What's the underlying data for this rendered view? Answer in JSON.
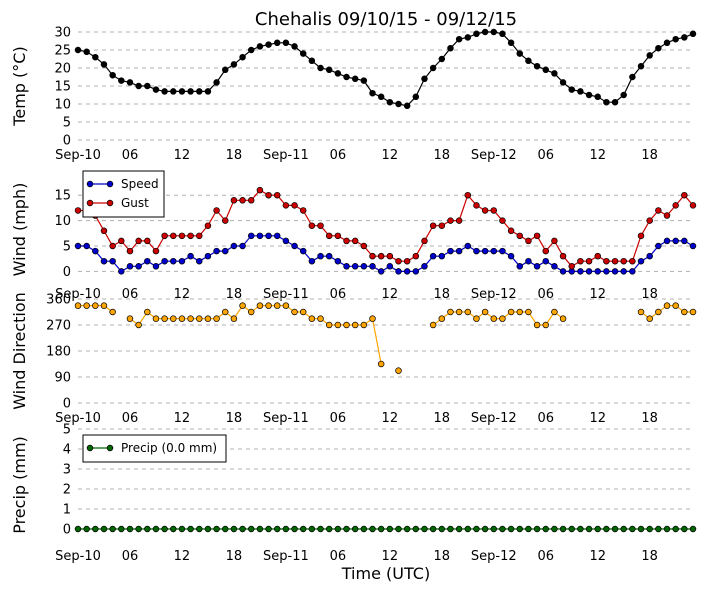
{
  "chart_data": [
    {
      "type": "line",
      "title": "Chehalis 09/10/15 - 09/12/15",
      "ylabel": "Temp (°C)",
      "ylim": [
        0,
        30
      ],
      "yticks": [
        0,
        5,
        10,
        15,
        20,
        25,
        30
      ],
      "x_tick_labels": [
        "Sep-10",
        "06",
        "12",
        "18",
        "Sep-11",
        "06",
        "12",
        "18",
        "Sep-12",
        "06",
        "12",
        "18"
      ],
      "grid": true,
      "colors": {
        "marker": "#000000",
        "line": "#000000"
      },
      "series": [
        {
          "values": [
            25,
            24.5,
            23,
            21,
            18,
            16.5,
            16,
            15,
            15,
            14,
            13.5,
            13.5,
            13.5,
            13.5,
            13.5,
            13.5,
            16,
            19.5,
            21,
            23,
            25,
            26,
            26.5,
            27,
            27,
            26,
            24,
            22,
            20,
            19.5,
            18.5,
            17.5,
            17,
            16.5,
            13,
            12,
            10.5,
            10,
            9.5,
            12,
            17,
            20,
            22.5,
            25.5,
            28,
            28.5,
            29.5,
            30,
            30,
            29.5,
            27,
            24,
            22,
            20.5,
            19.5,
            18.5,
            16,
            14,
            13.5,
            12.5,
            12,
            10.5,
            10.5,
            12.5,
            17.5,
            20.5,
            23.5,
            25.5,
            27,
            28,
            28.5,
            29.5
          ]
        }
      ]
    },
    {
      "type": "line",
      "ylabel": "Wind (mph)",
      "ylim": [
        -1.5,
        18
      ],
      "yticks": [
        0,
        5,
        10,
        15
      ],
      "x_tick_labels": [
        "Sep-10",
        "06",
        "12",
        "18",
        "Sep-11",
        "06",
        "12",
        "18",
        "Sep-12",
        "06",
        "12",
        "18"
      ],
      "grid": true,
      "legend": "top-left",
      "colors": {
        "speed": "#0000cc",
        "gust": "#cc0000"
      },
      "series": [
        {
          "name": "Speed",
          "values": [
            5,
            5,
            4,
            2,
            2,
            0,
            1,
            1,
            2,
            1,
            2,
            2,
            2,
            3,
            2,
            3,
            4,
            4,
            5,
            5,
            7,
            7,
            7,
            7,
            6,
            5,
            4,
            2,
            3,
            3,
            2,
            1,
            1,
            1,
            1,
            0,
            1,
            0,
            0,
            0,
            1,
            3,
            3,
            4,
            4,
            5,
            4,
            4,
            4,
            4,
            3,
            1,
            2,
            1,
            2,
            1,
            0,
            0,
            0,
            0,
            0,
            0,
            0,
            0,
            0,
            2,
            3,
            5,
            6,
            6,
            6,
            5
          ]
        },
        {
          "name": "Gust",
          "values": [
            12,
            12,
            11,
            8,
            5,
            6,
            4,
            6,
            6,
            4,
            7,
            7,
            7,
            7,
            7,
            9,
            12,
            10,
            14,
            14,
            14,
            16,
            15,
            15,
            13,
            13,
            12,
            9,
            9,
            7,
            7,
            6,
            6,
            5,
            3,
            3,
            3,
            2,
            2,
            3,
            6,
            9,
            9,
            10,
            10,
            15,
            13,
            12,
            12,
            10,
            8,
            7,
            6,
            7,
            4,
            6,
            3,
            1,
            2,
            2,
            3,
            2,
            2,
            2,
            2,
            7,
            10,
            12,
            11,
            13,
            15,
            13
          ]
        }
      ]
    },
    {
      "type": "line",
      "ylabel": "Wind Direction",
      "ylim": [
        0,
        360
      ],
      "yticks": [
        0,
        90,
        180,
        270,
        360
      ],
      "x_tick_labels": [
        "Sep-10",
        "06",
        "12",
        "18",
        "Sep-11",
        "06",
        "12",
        "18",
        "Sep-12",
        "06",
        "12",
        "18"
      ],
      "grid": true,
      "colors": {
        "marker": "#ffa500",
        "line": "#ffa500"
      },
      "series": [
        {
          "values": [
            337,
            337,
            337,
            337,
            315,
            null,
            292,
            270,
            315,
            292,
            292,
            292,
            292,
            292,
            292,
            292,
            292,
            315,
            292,
            337,
            315,
            337,
            337,
            337,
            337,
            315,
            315,
            292,
            292,
            270,
            270,
            270,
            270,
            270,
            292,
            135,
            null,
            112,
            null,
            null,
            null,
            270,
            292,
            315,
            315,
            315,
            292,
            315,
            292,
            292,
            315,
            315,
            315,
            270,
            270,
            315,
            292,
            null,
            null,
            null,
            null,
            null,
            null,
            null,
            null,
            315,
            292,
            315,
            337,
            337,
            315,
            315
          ]
        }
      ]
    },
    {
      "type": "line",
      "ylabel": "Precip (mm)",
      "xlabel": "Time (UTC)",
      "ylim": [
        -0.6,
        5
      ],
      "yticks": [
        0,
        1,
        2,
        3,
        4,
        5
      ],
      "x_tick_labels": [
        "Sep-10",
        "06",
        "12",
        "18",
        "Sep-11",
        "06",
        "12",
        "18",
        "Sep-12",
        "06",
        "12",
        "18"
      ],
      "grid": true,
      "legend": "top-left",
      "colors": {
        "marker": "#006400",
        "line": "#006400"
      },
      "series": [
        {
          "name": "Precip (0.0 mm)",
          "values": [
            0,
            0,
            0,
            0,
            0,
            0,
            0,
            0,
            0,
            0,
            0,
            0,
            0,
            0,
            0,
            0,
            0,
            0,
            0,
            0,
            0,
            0,
            0,
            0,
            0,
            0,
            0,
            0,
            0,
            0,
            0,
            0,
            0,
            0,
            0,
            0,
            0,
            0,
            0,
            0,
            0,
            0,
            0,
            0,
            0,
            0,
            0,
            0,
            0,
            0,
            0,
            0,
            0,
            0,
            0,
            0,
            0,
            0,
            0,
            0,
            0,
            0,
            0,
            0,
            0,
            0,
            0,
            0,
            0,
            0,
            0,
            0
          ]
        }
      ]
    }
  ]
}
